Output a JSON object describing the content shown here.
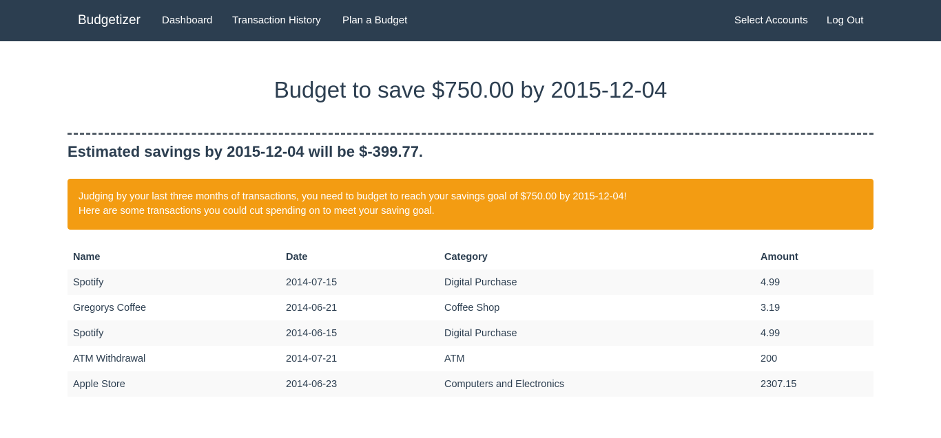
{
  "nav": {
    "brand": "Budgetizer",
    "links": [
      "Dashboard",
      "Transaction History",
      "Plan a Budget"
    ],
    "right_links": [
      "Select Accounts",
      "Log Out"
    ],
    "background": "#2c3e50"
  },
  "main": {
    "title": "Budget to save $750.00 by 2015-12-04",
    "estimate": "Estimated savings by 2015-12-04 will be $-399.77.",
    "alert": {
      "line1": "Judging by your last three months of transactions, you need to budget to reach your savings goal of $750.00 by 2015-12-04!",
      "line2": "Here are some transactions you could cut spending on to meet your saving goal.",
      "color": "#f39c12"
    },
    "table": {
      "headers": [
        "Name",
        "Date",
        "Category",
        "Amount"
      ],
      "rows": [
        [
          "Spotify",
          "2014-07-15",
          "Digital Purchase",
          "4.99"
        ],
        [
          "Gregorys Coffee",
          "2014-06-21",
          "Coffee Shop",
          "3.19"
        ],
        [
          "Spotify",
          "2014-06-15",
          "Digital Purchase",
          "4.99"
        ],
        [
          "ATM Withdrawal",
          "2014-07-21",
          "ATM",
          "200"
        ],
        [
          "Apple Store",
          "2014-06-23",
          "Computers and Electronics",
          "2307.15"
        ]
      ]
    }
  }
}
